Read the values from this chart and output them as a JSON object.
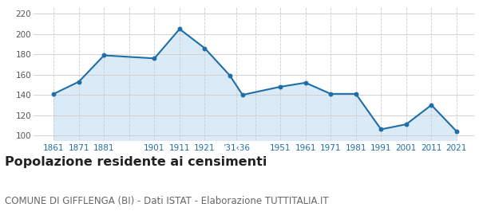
{
  "years": [
    1861,
    1871,
    1881,
    1901,
    1911,
    1921,
    1931,
    1936,
    1951,
    1961,
    1971,
    1981,
    1991,
    2001,
    2011,
    2021
  ],
  "population": [
    141,
    153,
    179,
    176,
    205,
    186,
    159,
    140,
    148,
    152,
    141,
    141,
    106,
    111,
    130,
    104
  ],
  "x_tick_labels": [
    "1861",
    "1871",
    "1881",
    "",
    "1901",
    "1911",
    "1921",
    "’31‹36",
    "",
    "1951",
    "1961",
    "1971",
    "1981",
    "1991",
    "2001",
    "2011",
    "2021"
  ],
  "x_tick_positions": [
    1861,
    1871,
    1881,
    1891,
    1901,
    1911,
    1921,
    1933.5,
    1941,
    1951,
    1961,
    1971,
    1981,
    1991,
    2001,
    2011,
    2021
  ],
  "ylim": [
    95,
    227
  ],
  "yticks": [
    100,
    120,
    140,
    160,
    180,
    200,
    220
  ],
  "line_color": "#1e6ea8",
  "fill_color": "#daeaf7",
  "marker_color": "#1e6ea8",
  "grid_color_h": "#cccccc",
  "grid_color_v": "#cccccc",
  "title": "Popolazione residente ai censimenti",
  "subtitle": "COMUNE DI GIFFLENGA (BI) - Dati ISTAT - Elaborazione TUTTITALIA.IT",
  "title_fontsize": 11.5,
  "subtitle_fontsize": 8.5,
  "title_color": "#222222",
  "subtitle_color": "#666666",
  "axis_tick_color": "#1e6ea8",
  "ytick_color": "#555555",
  "background_color": "#ffffff",
  "xlim": [
    1853,
    2028
  ]
}
